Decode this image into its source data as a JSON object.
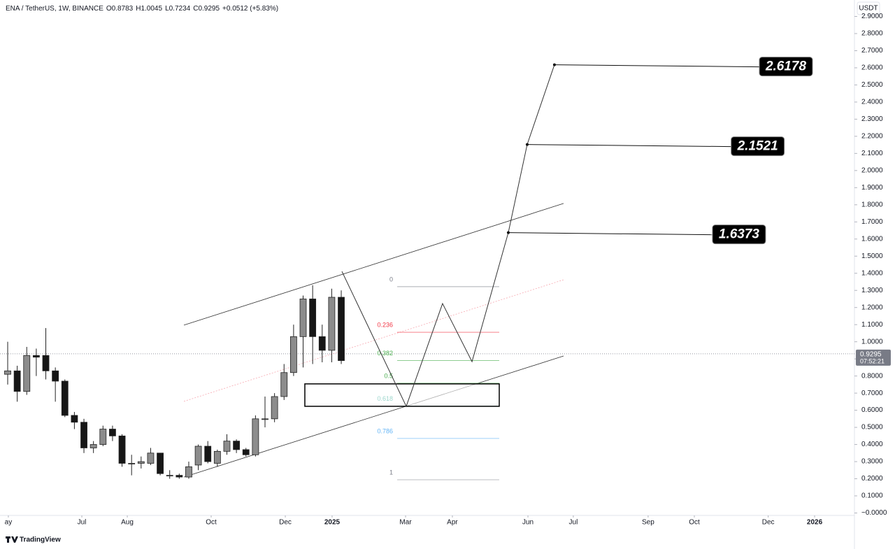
{
  "chart_data": {
    "type": "candlestick",
    "title": "ENA / TetherUS, 1W, BINANCE",
    "ohlc_legend": [
      "O0.8783",
      "H1.0045",
      "L0.7234",
      "C0.9295",
      "+0.0512 (+5.83%)"
    ],
    "currency": "USDT",
    "brand": "TradingView",
    "up_color": "#8c8c8c",
    "down_color": "#161616",
    "x": [
      0,
      1,
      2,
      3,
      4,
      5,
      6,
      7,
      8,
      9,
      10,
      11,
      12,
      13,
      14,
      15,
      16,
      17,
      18,
      19,
      20,
      21,
      22,
      23,
      24,
      25,
      26,
      27,
      28,
      29,
      30,
      31,
      32,
      33,
      34,
      35
    ],
    "open": [
      0.81,
      0.83,
      0.71,
      0.92,
      0.92,
      0.83,
      0.77,
      0.57,
      0.53,
      0.38,
      0.4,
      0.49,
      0.45,
      0.29,
      0.29,
      0.29,
      0.35,
      0.22,
      0.22,
      0.21,
      0.28,
      0.39,
      0.29,
      0.36,
      0.42,
      0.37,
      0.34,
      0.55,
      0.55,
      0.68,
      0.82,
      1.03,
      1.25,
      1.03,
      0.95,
      1.26
    ],
    "high": [
      1.0,
      0.86,
      0.97,
      0.96,
      1.08,
      0.85,
      0.78,
      0.59,
      0.55,
      0.42,
      0.51,
      0.51,
      0.46,
      0.34,
      0.33,
      0.38,
      0.35,
      0.25,
      0.23,
      0.3,
      0.4,
      0.42,
      0.37,
      0.46,
      0.43,
      0.38,
      0.57,
      0.68,
      0.7,
      0.87,
      1.1,
      1.27,
      1.33,
      1.1,
      1.31,
      1.3
    ],
    "low": [
      0.75,
      0.65,
      0.69,
      0.8,
      0.78,
      0.65,
      0.56,
      0.49,
      0.35,
      0.35,
      0.39,
      0.42,
      0.27,
      0.22,
      0.26,
      0.28,
      0.22,
      0.2,
      0.2,
      0.2,
      0.25,
      0.29,
      0.27,
      0.34,
      0.35,
      0.33,
      0.33,
      0.5,
      0.53,
      0.66,
      0.8,
      0.85,
      0.87,
      0.88,
      0.88,
      0.87
    ],
    "close": [
      0.83,
      0.71,
      0.92,
      0.91,
      0.83,
      0.77,
      0.57,
      0.53,
      0.38,
      0.4,
      0.49,
      0.45,
      0.29,
      0.29,
      0.3,
      0.35,
      0.23,
      0.22,
      0.21,
      0.27,
      0.39,
      0.3,
      0.36,
      0.42,
      0.37,
      0.34,
      0.55,
      0.55,
      0.68,
      0.82,
      1.03,
      1.25,
      1.03,
      0.95,
      1.26,
      0.89
    ],
    "xlim": [
      -0.807,
      88.85
    ],
    "xticks": [
      {
        "value": 0.07,
        "label": "ay"
      },
      {
        "value": 7.78,
        "label": "Jul"
      },
      {
        "value": 12.55,
        "label": "Aug"
      },
      {
        "value": 21.35,
        "label": "Oct"
      },
      {
        "value": 29.13,
        "label": "Dec"
      },
      {
        "value": 34.04,
        "label": "2025"
      },
      {
        "value": 41.75,
        "label": "Mar"
      },
      {
        "value": 46.66,
        "label": "Apr"
      },
      {
        "value": 54.59,
        "label": "Jun"
      },
      {
        "value": 59.35,
        "label": "Jul"
      },
      {
        "value": 67.2,
        "label": "Sep"
      },
      {
        "value": 72.05,
        "label": "Oct"
      },
      {
        "value": 79.8,
        "label": "Dec"
      },
      {
        "value": 84.67,
        "label": "2026"
      }
    ],
    "ylim": [
      -0.0143,
      2.996
    ],
    "yticks": [
      {
        "value": 0,
        "label": "−0.0000"
      },
      {
        "value": 0.1,
        "label": "0.1000"
      },
      {
        "value": 0.2,
        "label": "0.2000"
      },
      {
        "value": 0.3,
        "label": "0.3000"
      },
      {
        "value": 0.4,
        "label": "0.4000"
      },
      {
        "value": 0.5,
        "label": "0.5000"
      },
      {
        "value": 0.6,
        "label": "0.6000"
      },
      {
        "value": 0.7,
        "label": "0.7000"
      },
      {
        "value": 0.8,
        "label": "0.8000"
      },
      {
        "value": 0.9,
        "label": "0.9000"
      },
      {
        "value": 1.0,
        "label": "1.0000"
      },
      {
        "value": 1.1,
        "label": "1.1000"
      },
      {
        "value": 1.2,
        "label": "1.2000"
      },
      {
        "value": 1.3,
        "label": "1.3000"
      },
      {
        "value": 1.4,
        "label": "1.4000"
      },
      {
        "value": 1.5,
        "label": "1.5000"
      },
      {
        "value": 1.6,
        "label": "1.6000"
      },
      {
        "value": 1.7,
        "label": "1.7000"
      },
      {
        "value": 1.8,
        "label": "1.8000"
      },
      {
        "value": 1.9,
        "label": "1.9000"
      },
      {
        "value": 2.0,
        "label": "2.0000"
      },
      {
        "value": 2.1,
        "label": "2.1000"
      },
      {
        "value": 2.2,
        "label": "2.2000"
      },
      {
        "value": 2.3,
        "label": "2.3000"
      },
      {
        "value": 2.4,
        "label": "2.4000"
      },
      {
        "value": 2.5,
        "label": "2.5000"
      },
      {
        "value": 2.6,
        "label": "2.6000"
      },
      {
        "value": 2.7,
        "label": "2.7000"
      },
      {
        "value": 2.8,
        "label": "2.8000"
      },
      {
        "value": 2.9,
        "label": "2.9000"
      }
    ],
    "last_price": {
      "value": 0.9295,
      "countdown": "07:52:21"
    },
    "channel": [
      {
        "style": "solid",
        "x": [
          18.49,
          58.33
        ],
        "y": [
          1.097,
          1.808
        ]
      },
      {
        "style": "dotted",
        "x": [
          18.49,
          58.33
        ],
        "y": [
          0.652,
          1.362
        ]
      },
      {
        "style": "solid",
        "x": [
          18.49,
          58.33
        ],
        "y": [
          0.21,
          0.917
        ]
      }
    ],
    "zone": {
      "x": [
        31.18,
        51.58
      ],
      "y": [
        0.623,
        0.754
      ]
    },
    "fib": {
      "high": 1.3215,
      "low": 0.194,
      "x": [
        40.87,
        51.58
      ],
      "levels": [
        0,
        0.236,
        0.382,
        0.5,
        0.618,
        0.786,
        1
      ],
      "colors": [
        "#787b86",
        "#f23645",
        "#4caf50",
        "#4caf50",
        "#089981",
        "#64b5f6",
        "#787b86"
      ]
    },
    "projection": {
      "x": [
        35.07,
        41.82,
        45.63,
        48.72,
        52.53,
        54.51,
        57.37
      ],
      "y": [
        1.411,
        0.623,
        1.223,
        0.884,
        1.6373,
        2.1521,
        2.6178
      ]
    },
    "targets": [
      {
        "value": 2.6178,
        "x": [
          57.37,
          81.66
        ]
      },
      {
        "value": 2.1521,
        "x": [
          54.51,
          78.7
        ]
      },
      {
        "value": 1.6373,
        "x": [
          52.53,
          76.74
        ]
      }
    ]
  }
}
